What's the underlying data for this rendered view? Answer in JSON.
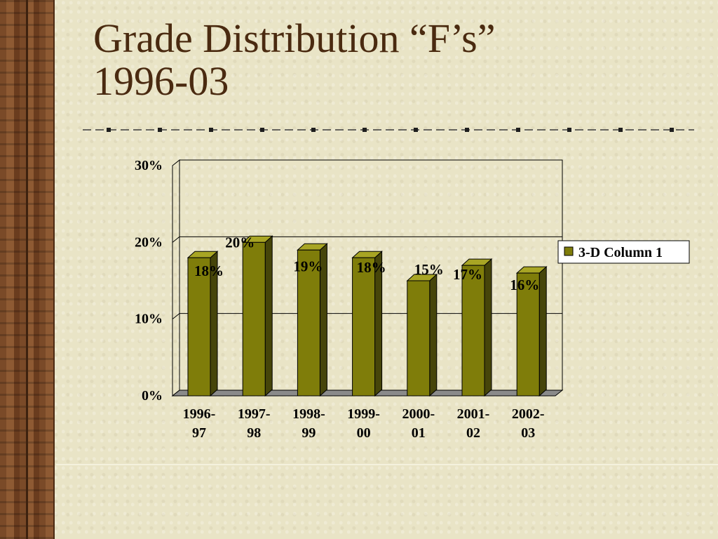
{
  "slide": {
    "title_line1": "Grade Distribution “F’s”",
    "title_line2": "1996-03"
  },
  "colors": {
    "title": "#4a2a10",
    "bar_front": "#7f7d0a",
    "bar_side": "#46450a",
    "bar_top": "#a8a524",
    "background": "#e9e4c6"
  },
  "chart_data": {
    "type": "bar",
    "style": "3d-column",
    "categories": [
      [
        "1996-",
        "97"
      ],
      [
        "1997-",
        "98"
      ],
      [
        "1998-",
        "99"
      ],
      [
        "1999-",
        "00"
      ],
      [
        "2000-",
        "01"
      ],
      [
        "2001-",
        "02"
      ],
      [
        "2002-",
        "03"
      ]
    ],
    "series": [
      {
        "name": "3-D Column 1",
        "values": [
          18,
          20,
          19,
          18,
          15,
          17,
          16
        ],
        "labels": [
          "18%",
          "20%",
          "19%",
          "18%",
          "15%",
          "17%",
          "16%"
        ]
      }
    ],
    "y_ticks": [
      {
        "value": 0,
        "label": "0%"
      },
      {
        "value": 10,
        "label": "10%"
      },
      {
        "value": 20,
        "label": "20%"
      },
      {
        "value": 30,
        "label": "30%"
      }
    ],
    "ylim": [
      0,
      30
    ],
    "grid": true,
    "legend": "right",
    "title": "",
    "xlabel": "",
    "ylabel": ""
  }
}
